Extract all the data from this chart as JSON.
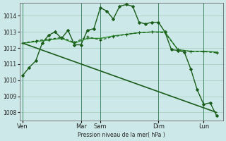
{
  "background_color": "#cde8e8",
  "grid_color": "#b0d4c8",
  "ylabel": "Pression niveau de la mer( hPa )",
  "ylim": [
    1007.5,
    1014.8
  ],
  "yticks": [
    1008,
    1009,
    1010,
    1011,
    1012,
    1013,
    1014
  ],
  "x_day_labels": [
    "Ven",
    "Mar",
    "Sam",
    "Dim",
    "Lun"
  ],
  "x_day_positions": [
    0,
    9,
    12,
    21,
    28
  ],
  "x_vlines": [
    0,
    9,
    12,
    21,
    28
  ],
  "xlim": [
    -0.5,
    31
  ],
  "series": [
    {
      "x": [
        0,
        1,
        2,
        3,
        4,
        5,
        6,
        7,
        8,
        9,
        10,
        11,
        12,
        13,
        14,
        15,
        16,
        17,
        18,
        19,
        20,
        21,
        22,
        23,
        24,
        25,
        26,
        27,
        28,
        29,
        30
      ],
      "y": [
        1010.3,
        1010.8,
        1011.2,
        1012.3,
        1012.8,
        1013.0,
        1012.6,
        1013.1,
        1012.2,
        1012.2,
        1013.1,
        1013.2,
        1014.5,
        1014.3,
        1013.8,
        1014.6,
        1014.7,
        1014.6,
        1013.6,
        1013.5,
        1013.6,
        1013.6,
        1013.0,
        1011.9,
        1011.85,
        1011.75,
        1010.7,
        1009.4,
        1008.5,
        1008.6,
        1007.8
      ],
      "color": "#1a5c1a",
      "lw": 1.0,
      "marker": "D",
      "ms": 2.0,
      "dashes": null
    },
    {
      "x": [
        0,
        2,
        4,
        6,
        8,
        10,
        12,
        14,
        16,
        18,
        20,
        22,
        24,
        26,
        28,
        30
      ],
      "y": [
        1012.3,
        1012.4,
        1012.5,
        1012.6,
        1012.3,
        1012.6,
        1012.6,
        1012.75,
        1012.85,
        1012.95,
        1013.0,
        1013.0,
        1011.9,
        1011.8,
        1011.8,
        1011.75
      ],
      "color": "#2d8c2d",
      "lw": 1.0,
      "marker": "+",
      "ms": 3.5,
      "dashes": null
    },
    {
      "x": [
        0,
        30
      ],
      "y": [
        1012.3,
        1008.0
      ],
      "color": "#1a5c1a",
      "lw": 1.2,
      "marker": null,
      "ms": 0,
      "dashes": null
    },
    {
      "x": [
        0,
        2,
        4,
        6,
        8,
        10,
        12,
        14,
        16,
        18,
        20,
        22,
        24,
        26,
        28,
        30
      ],
      "y": [
        1012.3,
        1012.45,
        1012.55,
        1012.65,
        1012.35,
        1012.7,
        1012.5,
        1012.7,
        1012.85,
        1012.95,
        1013.0,
        1012.95,
        1011.9,
        1011.78,
        1011.78,
        1011.7
      ],
      "color": "#1a5c1a",
      "lw": 0.9,
      "marker": "+",
      "ms": 3.0,
      "dashes": [
        3,
        2
      ]
    }
  ]
}
